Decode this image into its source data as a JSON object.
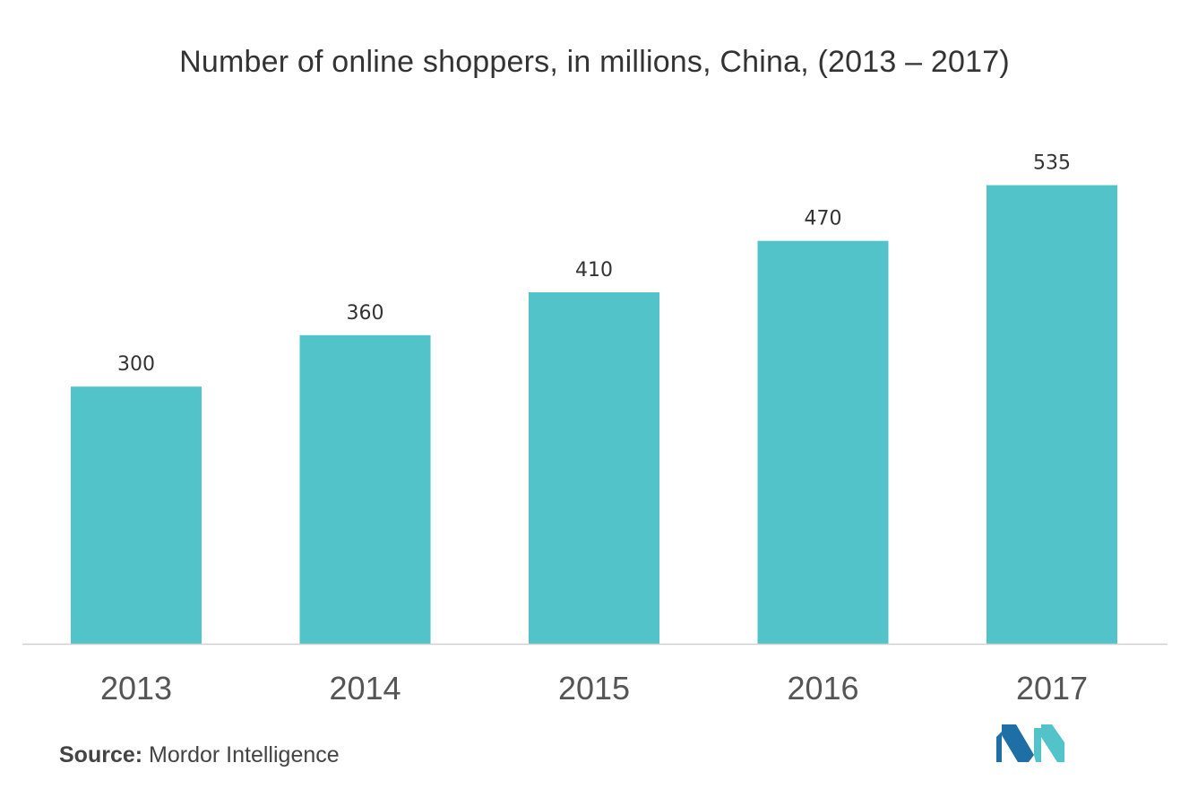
{
  "chart_data": {
    "type": "bar",
    "title": "Number of online shoppers, in millions, China, (2013 – 2017)",
    "categories": [
      "2013",
      "2014",
      "2015",
      "2016",
      "2017"
    ],
    "values": [
      300,
      360,
      410,
      470,
      535
    ],
    "data_labels": [
      "300",
      "360",
      "410",
      "470",
      "535"
    ],
    "xlabel": "",
    "ylabel": "",
    "ylim": [
      0,
      560
    ],
    "grid": false,
    "legend": "none",
    "bar_color": "#52c3c9",
    "axis_color": "#d0d0d0"
  },
  "source": {
    "key": "Source:",
    "value": "Mordor Intelligence"
  },
  "logo": {
    "icon": "mordor-intelligence-logo",
    "colors": [
      "#1d6fa5",
      "#52c3c9"
    ]
  }
}
